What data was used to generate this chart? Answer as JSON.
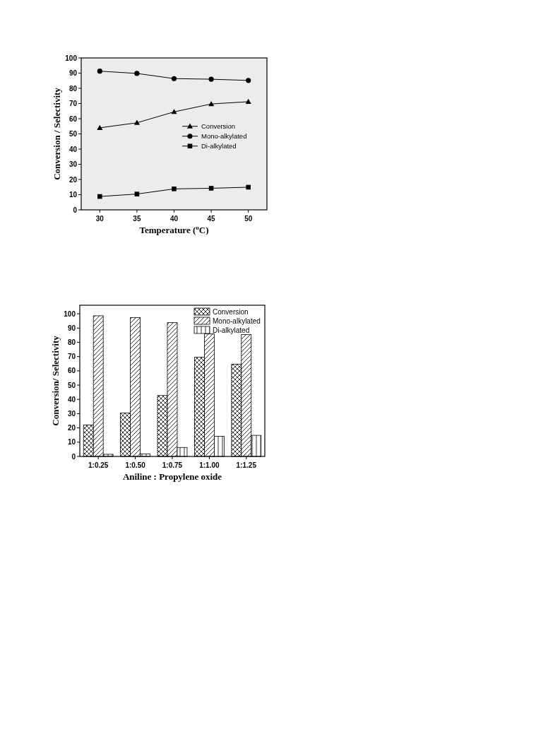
{
  "chart_data": [
    {
      "type": "line",
      "xlabel": "Temperature ($^{o}$C)",
      "ylabel": "Conversion / Selectivity",
      "x": [
        30,
        35,
        40,
        45,
        50
      ],
      "xlim": [
        27.5,
        52.5
      ],
      "xticks": [
        30,
        35,
        40,
        45,
        50
      ],
      "ylim": [
        0,
        100
      ],
      "yticks": [
        0,
        10,
        20,
        30,
        40,
        50,
        60,
        70,
        80,
        90,
        100
      ],
      "grid": false,
      "legend": "right",
      "line_style": "solid",
      "series": [
        {
          "name": "Conversion",
          "color": "#000000",
          "marker": "triangle",
          "values": [
            54,
            57.3,
            64.5,
            69.7,
            71.2
          ]
        },
        {
          "name": "Mono-alkylated",
          "color": "#000000",
          "marker": "circle",
          "values": [
            91.3,
            89.8,
            86.4,
            86,
            85.2
          ]
        },
        {
          "name": "Di-alkylated",
          "color": "#000000",
          "marker": "square",
          "values": [
            8.8,
            10.4,
            13.8,
            14.2,
            14.9
          ]
        }
      ]
    },
    {
      "type": "bar",
      "xlabel": "Aniline : Propylene oxide",
      "ylabel": "Conversion/ Selectivity",
      "categories": [
        "1:0.25",
        "1:0.50",
        "1:0.75",
        "1:1.00",
        "1:1.25"
      ],
      "ylim": [
        0,
        106
      ],
      "yticks": [
        0,
        10,
        20,
        30,
        40,
        50,
        60,
        70,
        80,
        90,
        100
      ],
      "grid": false,
      "legend": "top right",
      "series": [
        {
          "name": "Conversion",
          "color": "#000000",
          "values": [
            22,
            30.5,
            42.7,
            69.5,
            64.7
          ]
        },
        {
          "name": "Mono-alkylated",
          "color": "#000000",
          "values": [
            98.6,
            97.3,
            93.8,
            86,
            85.4
          ]
        },
        {
          "name": "Di-alkylated",
          "color": "#000000",
          "values": [
            1.5,
            1.8,
            6.3,
            14.1,
            14.8
          ]
        }
      ]
    }
  ]
}
